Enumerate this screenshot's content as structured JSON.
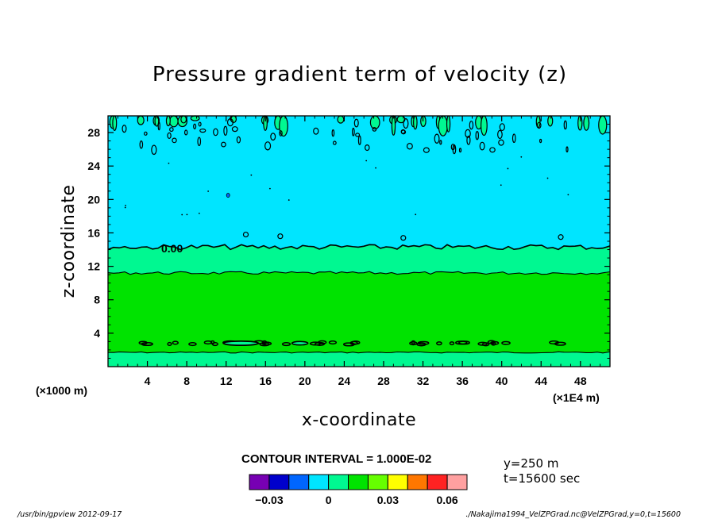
{
  "chart_data": {
    "type": "heatmap",
    "title": "Pressure gradient term of velocity (z)",
    "xlabel": "x-coordinate",
    "ylabel": "z-coordinate",
    "x_unit_label": "(×1E4 m)",
    "y_unit_label": "(×1000 m)",
    "xlim": [
      0,
      51
    ],
    "ylim": [
      0,
      30
    ],
    "x_ticks": [
      4,
      8,
      12,
      16,
      20,
      24,
      28,
      32,
      36,
      40,
      44,
      48
    ],
    "y_ticks": [
      4,
      8,
      12,
      16,
      20,
      24,
      28
    ],
    "contour_interval_text": "CONTOUR INTERVAL = 1.000E-02",
    "contour_label": "0.00",
    "layers": [
      {
        "z_bottom": 0,
        "z_top": 1.7,
        "value": 0.005,
        "color": "#00F891"
      },
      {
        "z_bottom": 1.7,
        "z_top": 11.2,
        "value": 0.015,
        "color": "#00E300"
      },
      {
        "z_bottom": 11.2,
        "z_top": 14.3,
        "value": 0.005,
        "color": "#00F891"
      },
      {
        "z_bottom": 14.3,
        "z_top": 30,
        "value": -0.005,
        "color": "#00E5FF"
      }
    ],
    "info": {
      "y_position": "y=250 m",
      "time": "t=15600 sec"
    },
    "colorbar": {
      "colors": [
        "#7700B3",
        "#0000CC",
        "#0066FF",
        "#00E5FF",
        "#00F891",
        "#00E300",
        "#66FF00",
        "#FFFF00",
        "#FF7700",
        "#FF2222",
        "#FFA0A0"
      ],
      "tick_values": [
        -0.03,
        0,
        0.03,
        0.06
      ],
      "tick_labels": [
        "−0.03",
        "0",
        "0.03",
        "0.06"
      ],
      "range": [
        -0.04,
        0.07
      ]
    }
  },
  "footer": {
    "left": "/usr/bin/gpview   2012-09-17",
    "right": "./Nakajima1994_VelZPGrad.nc@VelZPGrad,y=0,t=15600"
  }
}
